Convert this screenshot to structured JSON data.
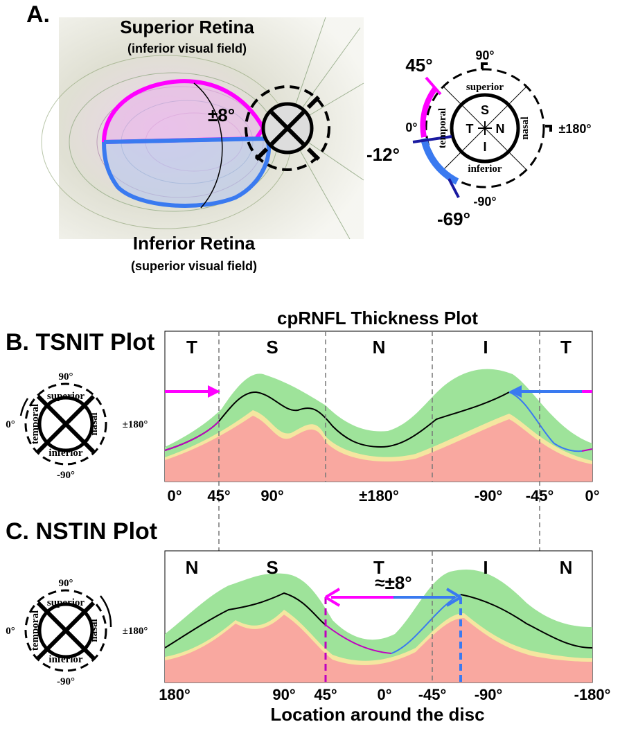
{
  "panel_a": {
    "label": "A.",
    "superior_title": "Superior Retina",
    "superior_sub": "(inferior visual field)",
    "inferior_title": "Inferior Retina",
    "inferior_sub": "(superior visual field)",
    "angle_label": "±8°",
    "dial": {
      "top": "90°",
      "bottom": "-90°",
      "left": "0°",
      "right": "±180°",
      "superior": "superior",
      "inferior": "inferior",
      "temporal": "temporal",
      "nasal": "nasal",
      "s": "S",
      "i": "I",
      "t": "T",
      "n": "N",
      "mark_45": "45°",
      "mark_m12": "-12°",
      "mark_m69": "-69°"
    }
  },
  "panel_b": {
    "label": "B. TSNIT Plot",
    "plot_title": "cpRNFL Thickness Plot",
    "sectors": [
      "T",
      "S",
      "N",
      "I",
      "T"
    ],
    "x_labels": [
      "0°",
      "45°",
      "90°",
      "±180°",
      "-90°",
      "-45°",
      "0°"
    ],
    "dial": {
      "top": "90°",
      "bottom": "-90°",
      "left": "0°",
      "right": "±180°",
      "superior": "superior",
      "inferior": "inferior",
      "temporal": "temporal",
      "nasal": "nasal"
    }
  },
  "panel_c": {
    "label": "C. NSTIN Plot",
    "sectors": [
      "N",
      "S",
      "T",
      "I",
      "N"
    ],
    "x_labels": [
      "180°",
      "90°",
      "45°",
      "0°",
      "-45°",
      "-90°",
      "-180°"
    ],
    "annotation": "≈±8°",
    "x_axis_label": "Location around the disc",
    "dial": {
      "top": "90°",
      "bottom": "-90°",
      "left": "0°",
      "right": "±180°",
      "superior": "superior",
      "inferior": "inferior",
      "temporal": "temporal",
      "nasal": "nasal"
    }
  }
}
